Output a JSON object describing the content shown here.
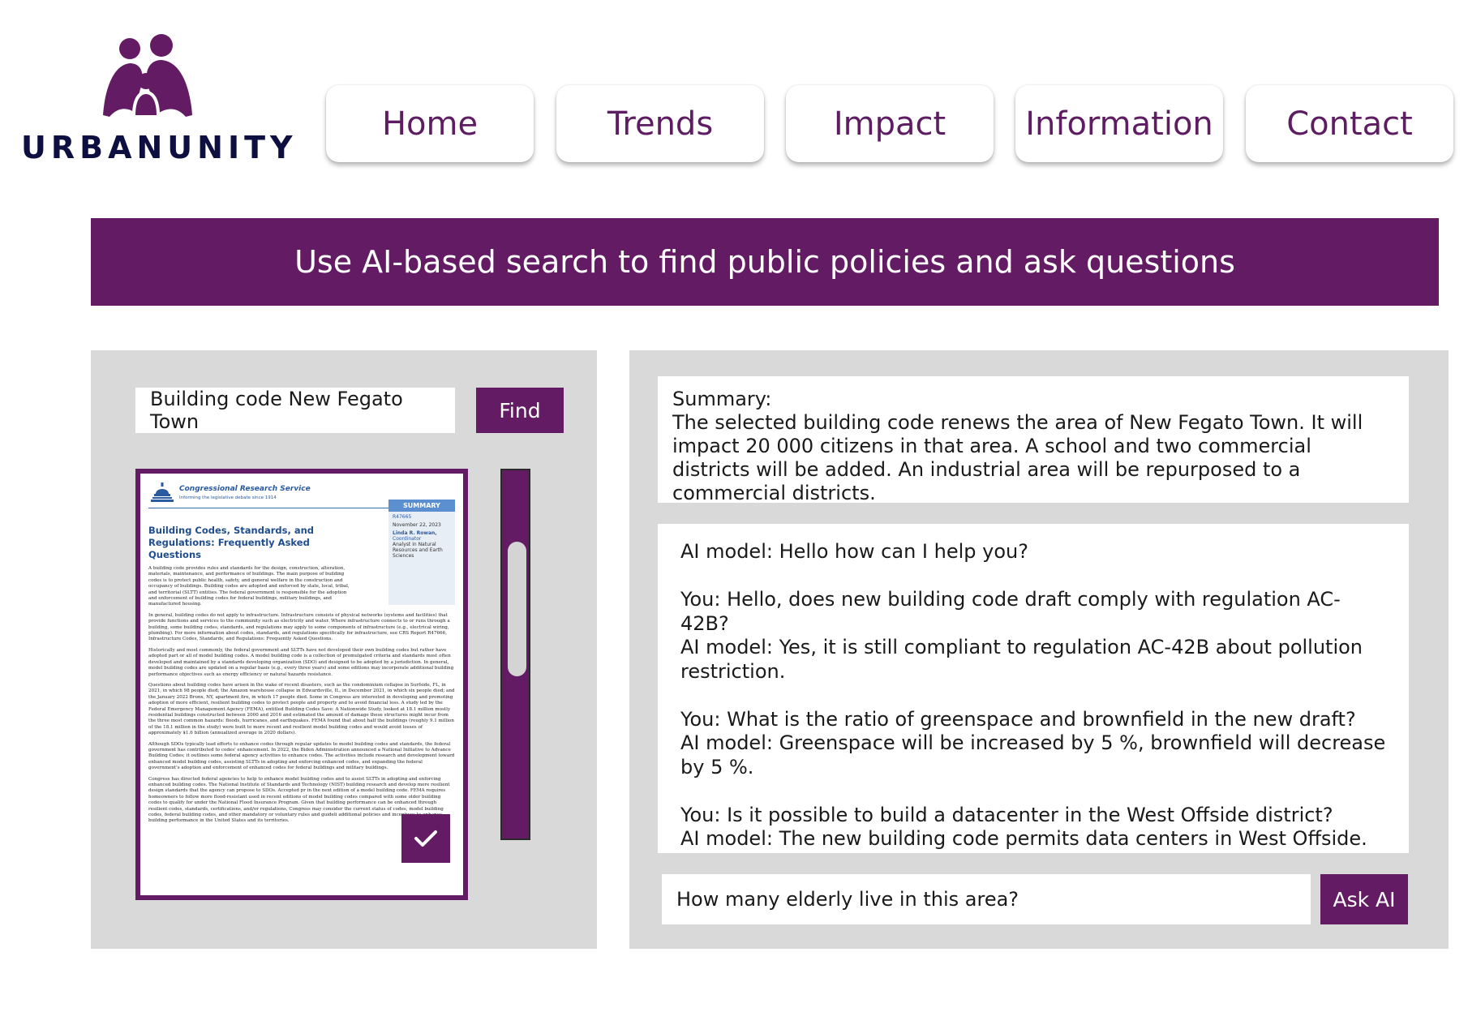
{
  "brand": {
    "logo_text": "URBANUNITY",
    "colors": {
      "primary": "#631c63",
      "nav_text": "#5e1d62",
      "logo_text": "#0c0f40",
      "panel_bg": "#d9d9d9"
    }
  },
  "nav": {
    "items": [
      {
        "label": "Home"
      },
      {
        "label": "Trends"
      },
      {
        "label": "Impact"
      },
      {
        "label": "Information"
      },
      {
        "label": "Contact"
      }
    ]
  },
  "banner": {
    "text": "Use AI-based search to find public policies and ask questions"
  },
  "search": {
    "value": "Building code New Fegato Town",
    "button_label": "Find"
  },
  "document": {
    "org": "Congressional Research Service",
    "tagline": "Informing the legislative debate since 1914",
    "title": "Building Codes, Standards, and Regulations: Frequently Asked Questions",
    "summary_label": "SUMMARY",
    "report_id": "R47665",
    "date": "November 22, 2023",
    "author": "Linda R. Rowan,",
    "author_role": "Coordinator",
    "author_title": "Analyst in Natural Resources and Earth Sciences",
    "paragraphs": [
      "A building code provides rules and standards for the design, construction, alteration, materials, maintenance, and performance of buildings. The main purpose of building codes is to protect public health, safety, and general welfare in the construction and occupancy of buildings. Building codes are adopted and enforced by state, local, tribal, and territorial (SLTT) entities. The federal government is responsible for the adoption and enforcement of building codes for federal buildings, military buildings, and manufactured housing.",
      "In general, building codes do not apply to infrastructure. Infrastructure consists of physical networks (systems and facilities) that provide functions and services to the community such as electricity and water. Where infrastructure connects to or runs through a building, some building codes, standards, and regulations may apply to some components of infrastructure (e.g., electrical wiring, plumbing). For more information about codes, standards, and regulations specifically for infrastructure, see CRS Report R47666, Infrastructure Codes, Standards, and Regulations: Frequently Asked Questions.",
      "Historically and most commonly, the federal government and SLTTs have not developed their own building codes but rather have adopted part or all of model building codes. A model building code is a collection of promulgated criteria and standards most often developed and maintained by a standards developing organization (SDO) and designed to be adopted by a jurisdiction. In general, model building codes are updated on a regular basis (e.g., every three years) and some editions may incorporate additional building performance objectives such as energy efficiency or natural hazards resistance.",
      "Questions about building codes have arisen in the wake of recent disasters, such as the condominium collapse in Surfside, FL, in 2021, in which 98 people died; the Amazon warehouse collapse in Edwardsville, IL, in December 2021, in which six people died; and the January 2022 Bronx, NY, apartment fire, in which 17 people died. Some in Congress are interested in developing and promoting adoption of more efficient, resilient building codes to protect people and property and to avoid financial loss. A study led by the Federal Emergency Management Agency (FEMA), entitled Building Codes Save: A Nationwide Study, looked at 18.1 million mostly residential buildings constructed between 2000 and 2016 and estimated the amount of damage these structures might incur from the three most common hazards: floods, hurricanes, and earthquakes. FEMA found that about half the buildings (roughly 9.1 million of the 18.1 million in the study) were built to more recent and resilient model building codes and would avoid losses of approximately $1.6 billion (annualized average in 2020 dollars).",
      "Although SDOs typically lead efforts to enhance codes through regular updates to model building codes and standards, the federal government has contributed to codes' enhancement. In 2022, the Biden Administration announced a National Initiative to Advance Building Codes; it outlines some federal agency activities to enhance codes. The activities include research and development toward enhanced model building codes, assisting SLTTs in adopting and enforcing enhanced codes, and expanding the federal government's adoption and enforcement of enhanced codes for federal buildings and military buildings.",
      "Congress has directed federal agencies to help to enhance model building codes and to assist SLTTs in adopting and enforcing enhanced building codes. The National Institute of Standards and Technology (NIST) building research and develop more resilient design standards that the agency can propose to SDOs. Accepted pr in the next edition of a model building code. FEMA requires homeowners to follow more flood-resistant used in recent editions of model building codes compared with some older building codes to qualify for under the National Flood Insurance Program. Given that building performance can be enhanced through resilient codes, standards, certifications, and/or regulations, Congress may consider the current status of codes, model building codes, federal building codes, and other mandatory or voluntary rules and guideli additional policies and incentives to enhance building performance in the United States and its territories."
    ]
  },
  "summary": {
    "label": "Summary:",
    "text": "The selected building code renews the area of New Fegato Town. It will impact 20 000 citizens in that area. A school and two commercial districts will be added. An industrial area will be repurposed to a commercial districts."
  },
  "chat": {
    "messages": [
      {
        "text": "AI model: Hello how can I help you?"
      },
      {
        "gap": true
      },
      {
        "text": "You: Hello, does new building code draft comply with regulation AC-42B?"
      },
      {
        "text": "AI model: Yes, it is still compliant to regulation AC-42B about pollution restriction."
      },
      {
        "gap": true
      },
      {
        "text": "You: What is the ratio of greenspace and brownfield in the new draft?"
      },
      {
        "text": "AI model: Greenspace will be increased by 5 %, brownfield will decrease by 5 %."
      },
      {
        "gap": true
      },
      {
        "text": "You: Is it possible to build a datacenter in the West Offside district?"
      },
      {
        "text": "AI model: The new building code permits data centers in West Offside."
      }
    ]
  },
  "ask": {
    "value": "How many elderly live in this area?",
    "button_label": "Ask AI"
  }
}
